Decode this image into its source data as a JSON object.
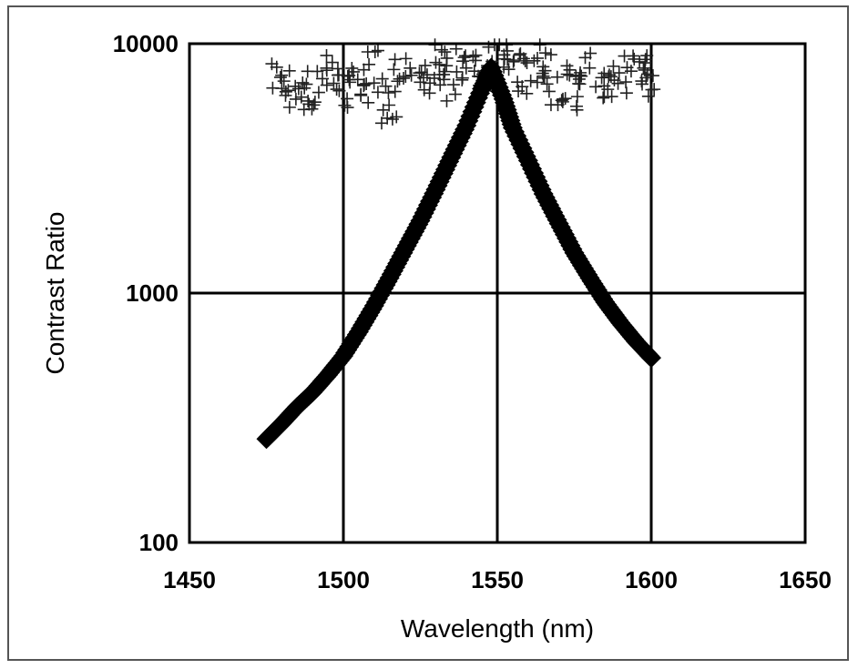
{
  "chart_data": {
    "type": "scatter",
    "title": "",
    "xlabel": "Wavelength (nm)",
    "ylabel": "Contrast Ratio",
    "xlim": [
      1450,
      1650
    ],
    "ylim": [
      100,
      10000
    ],
    "yscale": "log",
    "grid": true,
    "x_ticks": [
      {
        "value": 1450,
        "label": "1450"
      },
      {
        "value": 1500,
        "label": "1500"
      },
      {
        "value": 1550,
        "label": "1550"
      },
      {
        "value": 1600,
        "label": "1600"
      },
      {
        "value": 1650,
        "label": "1650"
      }
    ],
    "y_ticks": [
      {
        "value": 100,
        "label": "100"
      },
      {
        "value": 1000,
        "label": "1000"
      },
      {
        "value": 10000,
        "label": "10000"
      }
    ],
    "series": [
      {
        "marker": "diamond",
        "x": [
          1475,
          1480,
          1485,
          1490,
          1495,
          1500,
          1505,
          1510,
          1515,
          1520,
          1525,
          1530,
          1535,
          1540,
          1545,
          1548,
          1552,
          1555,
          1560,
          1565,
          1570,
          1575,
          1580,
          1585,
          1590,
          1595,
          1600
        ],
        "y": [
          260,
          300,
          350,
          400,
          470,
          560,
          700,
          890,
          1150,
          1500,
          1950,
          2600,
          3500,
          4700,
          6600,
          8000,
          6000,
          4600,
          3400,
          2500,
          1900,
          1450,
          1150,
          920,
          760,
          640,
          550
        ]
      },
      {
        "marker": "plus",
        "x": [
          1480,
          1485,
          1490,
          1495,
          1500,
          1505,
          1510,
          1515,
          1520,
          1525,
          1530,
          1535,
          1540,
          1545,
          1550,
          1555,
          1560,
          1565,
          1570,
          1575,
          1580,
          1585,
          1590,
          1595,
          1600
        ],
        "y": [
          7500,
          6800,
          6200,
          8200,
          7000,
          6500,
          8500,
          6000,
          7800,
          6700,
          8800,
          7300,
          9000,
          8400,
          9200,
          8600,
          7600,
          8900,
          7100,
          6600,
          8100,
          6900,
          7700,
          8300,
          7400
        ]
      }
    ]
  }
}
